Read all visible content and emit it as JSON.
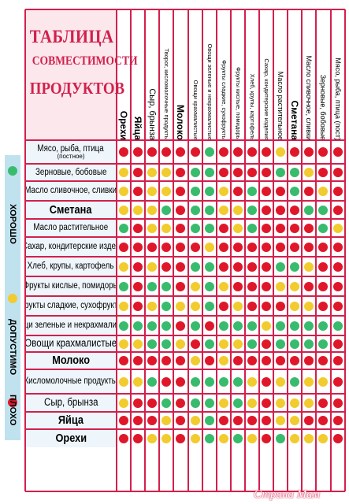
{
  "title": {
    "line1": "ТАБЛИЦА",
    "line2": "СОВМЕСТИМОСТИ",
    "line3": "ПРОДУКТОВ"
  },
  "columns": [
    "Орехи",
    "Яйца",
    "Сыр, брынза",
    "Творог, кисломолочные продукты",
    "Молоко",
    "Овощи крахмалистые",
    "Овощи зеленые и некрахмалистые",
    "Фрукты сладкие, сухофрукты",
    "Фрукты кислые, помидоры",
    "Хлеб, крупы, картофель",
    "Сахар, кондитерские изделия",
    "Масло растительное",
    "Сметана",
    "Масло сливочное, сливки",
    "Зерновые, бобовые",
    "Мясо, рыба, птица (пост)"
  ],
  "rows": [
    {
      "label": "Мясо, рыба, птица",
      "sublabel": "(постное)",
      "cells": [
        "r",
        "r",
        "r",
        "r",
        "r",
        "r",
        "g",
        "r",
        "r",
        "r",
        "r",
        "y",
        "r",
        "r",
        "r",
        "r"
      ]
    },
    {
      "label": "Зерновые, бобовые",
      "cells": [
        "y",
        "r",
        "y",
        "y",
        "r",
        "g",
        "g",
        "r",
        "r",
        "r",
        "r",
        "g",
        "g",
        "y",
        "r",
        "r"
      ]
    },
    {
      "label": "Масло сливочное, сливки",
      "cells": [
        "y",
        "r",
        "y",
        "y",
        "r",
        "g",
        "g",
        "y",
        "r",
        "g",
        "r",
        "r",
        "g",
        "r",
        "y",
        "r"
      ]
    },
    {
      "label": "Сметана",
      "cells": [
        "y",
        "y",
        "y",
        "g",
        "r",
        "g",
        "g",
        "y",
        "y",
        "g",
        "r",
        "r",
        "r",
        "g",
        "g",
        "r"
      ]
    },
    {
      "label": "Масло растительное",
      "cells": [
        "g",
        "r",
        "y",
        "y",
        "r",
        "g",
        "g",
        "r",
        "y",
        "g",
        "r",
        "r",
        "r",
        "r",
        "g",
        "y"
      ]
    },
    {
      "label": "Сахар, кондитерские издел",
      "cells": [
        "r",
        "r",
        "r",
        "r",
        "r",
        "r",
        "y",
        "r",
        "r",
        "r",
        "r",
        "r",
        "r",
        "r",
        "r",
        "r"
      ]
    },
    {
      "label": "Хлеб, крупы, картофель",
      "cells": [
        "y",
        "r",
        "y",
        "r",
        "r",
        "g",
        "g",
        "r",
        "r",
        "r",
        "r",
        "g",
        "g",
        "y",
        "r",
        "r"
      ]
    },
    {
      "label": "Фрукты кислые, помидоры",
      "cells": [
        "g",
        "r",
        "g",
        "g",
        "r",
        "y",
        "g",
        "y",
        "r",
        "r",
        "r",
        "y",
        "y",
        "r",
        "r",
        "r"
      ]
    },
    {
      "label": "Фрукты сладкие, сухофрукты",
      "cells": [
        "y",
        "r",
        "y",
        "g",
        "y",
        "y",
        "g",
        "r",
        "y",
        "r",
        "r",
        "r",
        "y",
        "y",
        "r",
        "r"
      ]
    },
    {
      "label": "Овощи зеленые и некрахмалистые",
      "cells": [
        "g",
        "g",
        "g",
        "g",
        "r",
        "g",
        "r",
        "g",
        "g",
        "g",
        "y",
        "g",
        "g",
        "g",
        "g",
        "g"
      ]
    },
    {
      "label": "Овощи крахмалистые",
      "cells": [
        "y",
        "y",
        "g",
        "g",
        "y",
        "r",
        "g",
        "y",
        "y",
        "g",
        "r",
        "g",
        "g",
        "g",
        "g",
        "r"
      ]
    },
    {
      "label": "Молоко",
      "cells": [
        "r",
        "r",
        "r",
        "r",
        "r",
        "y",
        "r",
        "y",
        "r",
        "r",
        "r",
        "r",
        "r",
        "r",
        "r",
        "r"
      ]
    },
    {
      "label": "Кисломолочные продукты",
      "cells": [
        "y",
        "y",
        "g",
        "r",
        "r",
        "g",
        "g",
        "g",
        "g",
        "y",
        "r",
        "y",
        "g",
        "y",
        "y",
        "r"
      ]
    },
    {
      "label": "Сыр, брынза",
      "cells": [
        "y",
        "r",
        "r",
        "g",
        "r",
        "g",
        "g",
        "y",
        "g",
        "y",
        "r",
        "y",
        "y",
        "y",
        "r",
        "r"
      ]
    },
    {
      "label": "Яйца",
      "cells": [
        "r",
        "r",
        "r",
        "y",
        "r",
        "y",
        "g",
        "r",
        "r",
        "r",
        "r",
        "y",
        "y",
        "r",
        "r",
        "r"
      ]
    },
    {
      "label": "Орехи",
      "cells": [
        "r",
        "r",
        "y",
        "y",
        "r",
        "y",
        "g",
        "y",
        "g",
        "y",
        "r",
        "g",
        "y",
        "y",
        "y",
        "r"
      ]
    }
  ],
  "legend": [
    {
      "color": "g",
      "label": "ХОРОШО"
    },
    {
      "color": "y",
      "label": "ДОПУСТИМО"
    },
    {
      "color": "r",
      "label": "ПЛОХО"
    }
  ],
  "colors": {
    "good": "#39bb6e",
    "acceptable": "#f2cb2f",
    "bad": "#e0172a",
    "grid": "#d2204c"
  },
  "watermark": "Страна Мам"
}
